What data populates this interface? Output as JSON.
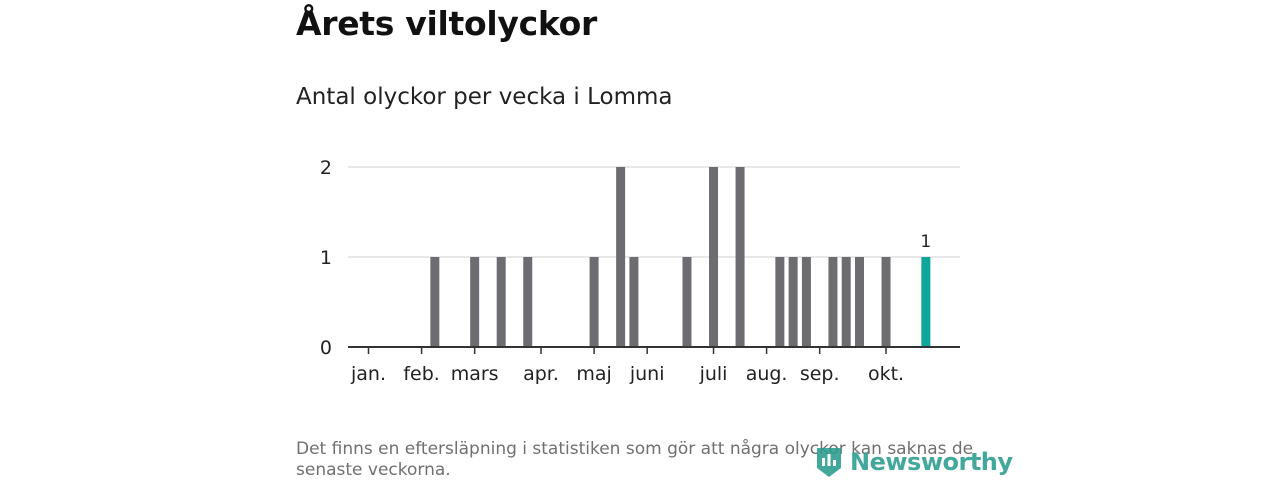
{
  "header": {
    "title": "Årets viltolyckor",
    "subtitle": "Antal olyckor per vecka i Lomma"
  },
  "footer": {
    "note": "Det finns en eftersläpning i statistiken som gör att några olyckor kan saknas de senaste veckorna.",
    "logo_text": "Newsworthy",
    "logo_icon": "bar-chart-badge-icon"
  },
  "colors": {
    "bar": "#6d6c71",
    "highlight": "#0ea59b",
    "grid": "#d9d9d9",
    "axis": "#333333"
  },
  "chart_data": {
    "type": "bar",
    "x": [
      1,
      2,
      3,
      4,
      5,
      6,
      7,
      8,
      9,
      10,
      11,
      12,
      13,
      14,
      15,
      16,
      17,
      18,
      19,
      20,
      21,
      22,
      23,
      24,
      25,
      26,
      27,
      28,
      29,
      30,
      31,
      32,
      33,
      34,
      35,
      36,
      37,
      38,
      39,
      40,
      41,
      42,
      43
    ],
    "values": [
      0,
      0,
      0,
      0,
      0,
      1,
      0,
      0,
      1,
      0,
      1,
      0,
      1,
      0,
      0,
      0,
      0,
      1,
      0,
      2,
      1,
      0,
      0,
      0,
      1,
      0,
      2,
      0,
      2,
      0,
      0,
      1,
      1,
      1,
      0,
      1,
      1,
      1,
      0,
      1,
      0,
      0,
      1
    ],
    "highlight_index": 42,
    "highlight_label": "1",
    "ylim": [
      0,
      2
    ],
    "yticks": [
      0,
      1,
      2
    ],
    "month_ticks": [
      {
        "label": "jan.",
        "week": 1
      },
      {
        "label": "feb.",
        "week": 5
      },
      {
        "label": "mars",
        "week": 9
      },
      {
        "label": "apr.",
        "week": 14
      },
      {
        "label": "maj",
        "week": 18
      },
      {
        "label": "juni",
        "week": 22
      },
      {
        "label": "juli",
        "week": 27
      },
      {
        "label": "aug.",
        "week": 31
      },
      {
        "label": "sep.",
        "week": 35
      },
      {
        "label": "okt.",
        "week": 40
      }
    ],
    "grid": true,
    "legend": "none"
  }
}
